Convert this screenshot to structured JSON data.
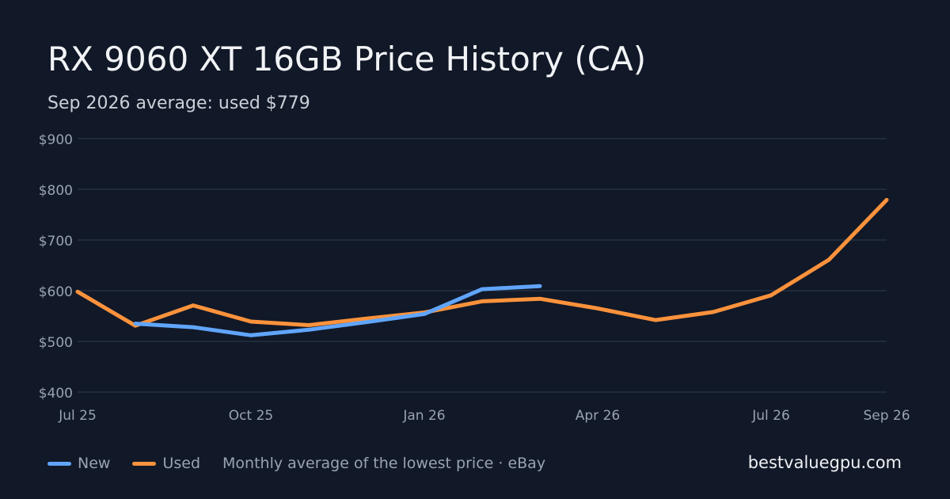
{
  "title": "RX 9060 XT 16GB Price History (CA)",
  "subtitle": "Sep 2026 average: used $779",
  "legend": {
    "new_label": "New",
    "used_label": "Used",
    "note": "Monthly average of the lowest price · eBay"
  },
  "brand": "bestvaluegpu.com",
  "colors": {
    "background": "#111827",
    "new": "#60a5fa",
    "used": "#fb923c",
    "grid": "#263042",
    "tick_text": "#9aa3b2"
  },
  "chart_data": {
    "type": "line",
    "title": "RX 9060 XT 16GB Price History (CA)",
    "xlabel": "",
    "ylabel": "",
    "ylim": [
      400,
      900
    ],
    "yticks": [
      400,
      500,
      600,
      700,
      800,
      900
    ],
    "ytick_labels": [
      "$400",
      "$500",
      "$600",
      "$700",
      "$800",
      "$900"
    ],
    "x_months": [
      "Jul 25",
      "Aug 25",
      "Sep 25",
      "Oct 25",
      "Nov 25",
      "Dec 25",
      "Jan 26",
      "Feb 26",
      "Mar 26",
      "Apr 26",
      "May 26",
      "Jun 26",
      "Jul 26",
      "Aug 26",
      "Sep 26"
    ],
    "xticks": [
      {
        "label": "Jul 25",
        "index": 0
      },
      {
        "label": "Oct 25",
        "index": 3
      },
      {
        "label": "Jan 26",
        "index": 6
      },
      {
        "label": "Apr 26",
        "index": 9
      },
      {
        "label": "Jul 26",
        "index": 12
      },
      {
        "label": "Sep 26",
        "index": 14
      }
    ],
    "grid": true,
    "legend_position": "bottom-left",
    "series": [
      {
        "name": "New",
        "color": "#60a5fa",
        "values": [
          null,
          535,
          528,
          512,
          523,
          538,
          554,
          603,
          609,
          null,
          null,
          null,
          null,
          null,
          null
        ]
      },
      {
        "name": "Used",
        "color": "#fb923c",
        "values": [
          598,
          531,
          571,
          539,
          532,
          545,
          557,
          579,
          584,
          565,
          542,
          558,
          591,
          661,
          779
        ]
      }
    ]
  }
}
